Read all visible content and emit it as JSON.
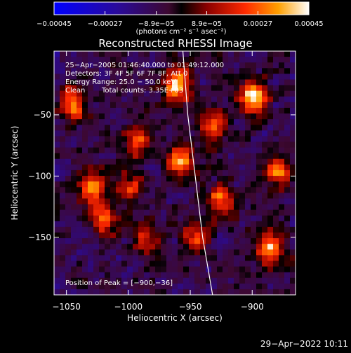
{
  "chart_data": {
    "type": "heatmap",
    "title": "Reconstructed RHESSI Image",
    "xlabel": "Heliocentric X (arcsec)",
    "ylabel": "Heliocentric Y (arcsec)",
    "xlim": [
      -1060,
      -865
    ],
    "ylim": [
      -197,
      2
    ],
    "x_ticks": [
      -1050,
      -1000,
      -950,
      -900
    ],
    "x_tick_labels": [
      "−1050",
      "−1000",
      "−950",
      "−900"
    ],
    "y_ticks": [
      -50,
      -100,
      -150
    ],
    "y_tick_labels": [
      "−50",
      "−100",
      "−150"
    ],
    "colorbar": {
      "range": [
        -0.00045,
        0.00045
      ],
      "ticks": [
        -0.00045,
        -0.00027,
        -8.9e-05,
        8.9e-05,
        0.00027,
        0.00045
      ],
      "tick_labels": [
        "−0.00045",
        "−0.00027",
        "−8.9e−05",
        "8.9e−05",
        "0.00027",
        "0.00045"
      ],
      "unit_label": "(photons cm⁻² s⁻¹ asec⁻²)"
    },
    "annotations": {
      "time": "25−Apr−2005 01:46:40.000 to 01:49:12.000",
      "detectors": "Detectors: 3F 4F 5F 6F 7F 8F, Att 0",
      "energy": "Energy Range: 25.0 − 50.0 keV",
      "clean": "Clean",
      "counts": "Total counts: 3.35E+03",
      "peak": "Position of Peak = [−900,−36]"
    },
    "hotspots": [
      {
        "x": -1045,
        "y": -42,
        "value": 0.00033
      },
      {
        "x": -1030,
        "y": -108,
        "value": 0.0003
      },
      {
        "x": -1020,
        "y": -135,
        "value": 0.00024
      },
      {
        "x": -990,
        "y": -72,
        "value": 0.00022
      },
      {
        "x": -985,
        "y": -150,
        "value": 0.00018
      },
      {
        "x": -960,
        "y": -25,
        "value": 0.0004
      },
      {
        "x": -958,
        "y": -88,
        "value": 0.00036
      },
      {
        "x": -945,
        "y": -150,
        "value": 0.0002
      },
      {
        "x": -925,
        "y": -120,
        "value": 0.00024
      },
      {
        "x": -900,
        "y": -36,
        "value": 0.00045
      },
      {
        "x": -880,
        "y": -95,
        "value": 0.00028
      },
      {
        "x": -885,
        "y": -158,
        "value": 0.00032
      },
      {
        "x": -1000,
        "y": -110,
        "value": 0.0002
      },
      {
        "x": -930,
        "y": -60,
        "value": 0.00022
      }
    ],
    "limb": [
      [
        -956,
        2
      ],
      [
        -952,
        -50
      ],
      [
        -946,
        -100
      ],
      [
        -940,
        -150
      ],
      [
        -932,
        -197
      ]
    ]
  },
  "footer": {
    "datetime": "29−Apr−2022 10:11"
  }
}
